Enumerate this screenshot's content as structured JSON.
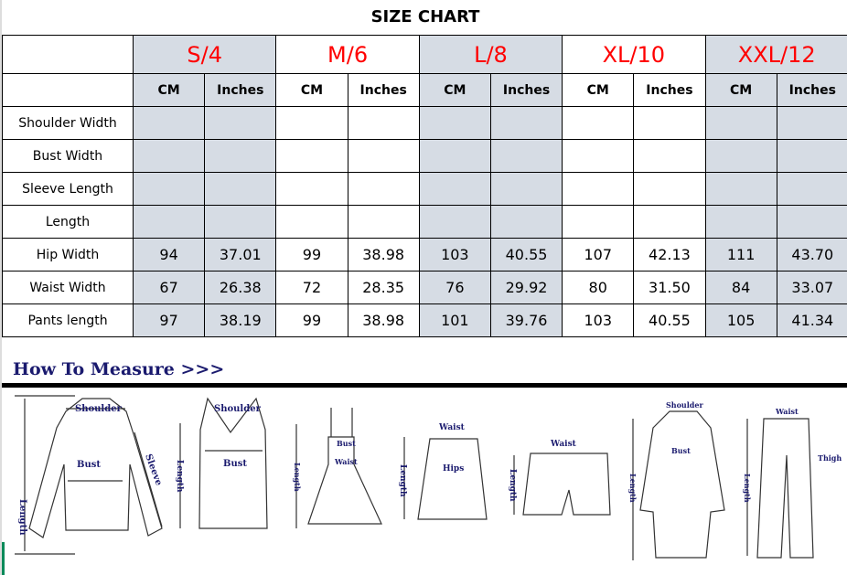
{
  "title": "SIZE CHART",
  "sizes": [
    {
      "name": "S/4",
      "shaded": true
    },
    {
      "name": "M/6",
      "shaded": false
    },
    {
      "name": "L/8",
      "shaded": true
    },
    {
      "name": "XL/10",
      "shaded": false
    },
    {
      "name": "XXL/12",
      "shaded": true
    }
  ],
  "units": [
    "CM",
    "Inches"
  ],
  "rows": [
    {
      "label": "Shoulder Width",
      "values": [
        "",
        "",
        "",
        "",
        "",
        "",
        "",
        "",
        "",
        ""
      ]
    },
    {
      "label": "Bust Width",
      "values": [
        "",
        "",
        "",
        "",
        "",
        "",
        "",
        "",
        "",
        ""
      ]
    },
    {
      "label": "Sleeve Length",
      "values": [
        "",
        "",
        "",
        "",
        "",
        "",
        "",
        "",
        "",
        ""
      ]
    },
    {
      "label": "Length",
      "values": [
        "",
        "",
        "",
        "",
        "",
        "",
        "",
        "",
        "",
        ""
      ]
    },
    {
      "label": "Hip Width",
      "values": [
        "94",
        "37.01",
        "99",
        "38.98",
        "103",
        "40.55",
        "107",
        "42.13",
        "111",
        "43.70"
      ]
    },
    {
      "label": "Waist Width",
      "values": [
        "67",
        "26.38",
        "72",
        "28.35",
        "76",
        "29.92",
        "80",
        "31.50",
        "84",
        "33.07"
      ]
    },
    {
      "label": "Pants length",
      "values": [
        "97",
        "38.19",
        "99",
        "38.98",
        "101",
        "39.76",
        "103",
        "40.55",
        "105",
        "41.34"
      ]
    }
  ],
  "colors": {
    "size_text": "#ff0000",
    "shade": "#d6dce4",
    "measure_text": "#1a1a6e"
  },
  "how_to": "How To Measure >>>",
  "figures": {
    "shoulder": "Shoulder",
    "bust": "Bust",
    "sleeve": "Sleeve",
    "length": "Length",
    "waist": "Waist",
    "hips": "Hips",
    "thigh": "Thigh"
  }
}
